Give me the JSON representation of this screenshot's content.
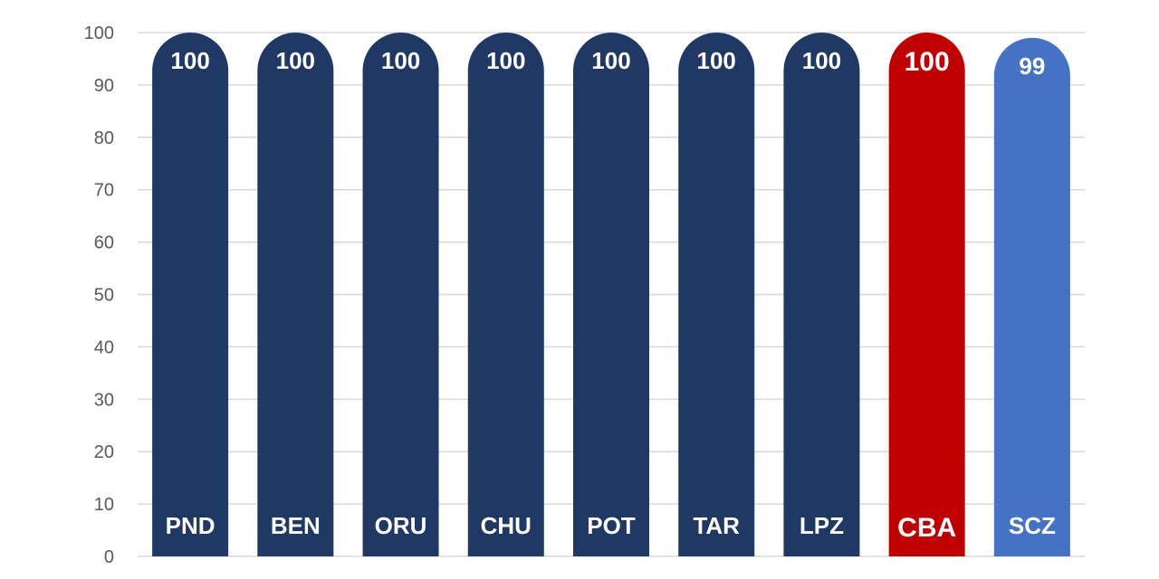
{
  "chart_data": {
    "type": "bar",
    "categories": [
      "PND",
      "BEN",
      "ORU",
      "CHU",
      "POT",
      "TAR",
      "LPZ",
      "CBA",
      "SCZ"
    ],
    "values": [
      100,
      100,
      100,
      100,
      100,
      100,
      100,
      100,
      99
    ],
    "value_labels": [
      "100",
      "100",
      "100",
      "100",
      "100",
      "100",
      "100",
      "100",
      "99"
    ],
    "bar_colors": [
      "#1f3864",
      "#1f3864",
      "#1f3864",
      "#1f3864",
      "#1f3864",
      "#1f3864",
      "#1f3864",
      "#c00000",
      "#4472c4"
    ],
    "highlight_index": 7,
    "title": "",
    "xlabel": "",
    "ylabel": "",
    "ylim": [
      0,
      100
    ],
    "yticks": [
      0,
      10,
      20,
      30,
      40,
      50,
      60,
      70,
      80,
      90,
      100
    ],
    "grid": true,
    "legend": "none",
    "gridline_color": "#d9d9d9",
    "axis_label_color": "#595959"
  }
}
